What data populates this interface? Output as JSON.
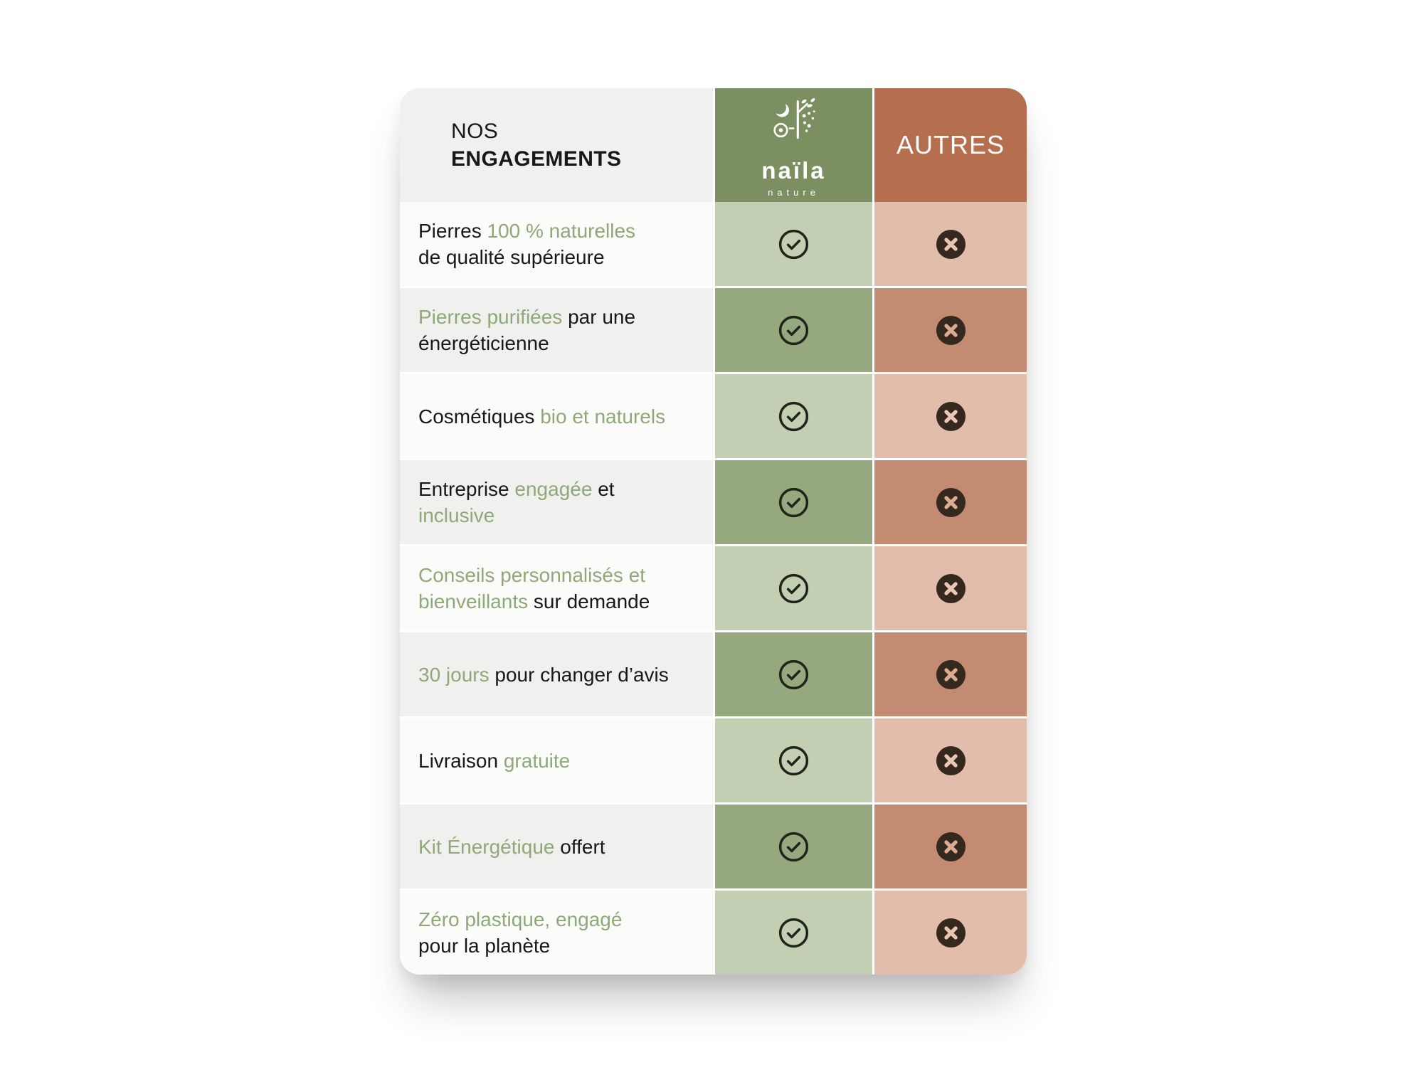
{
  "table": {
    "header": {
      "left_line1": "NOS",
      "left_line2": "ENGAGEMENTS",
      "brand_name": "naïla",
      "brand_subtitle": "nature",
      "right_title": "AUTRES"
    },
    "rows": [
      {
        "naila": "check",
        "autres": "cross",
        "segments": [
          {
            "text": "Pierres ",
            "green": false
          },
          {
            "text": "100 % naturelles",
            "green": true
          },
          {
            "text": "de qualité supérieure",
            "green": false,
            "break_before": true
          }
        ]
      },
      {
        "naila": "check",
        "autres": "cross",
        "segments": [
          {
            "text": "Pierres purifiées",
            "green": true
          },
          {
            "text": " par une",
            "green": false
          },
          {
            "text": "énergéticienne",
            "green": false,
            "break_before": true
          }
        ]
      },
      {
        "naila": "check",
        "autres": "cross",
        "segments": [
          {
            "text": "Cosmétiques ",
            "green": false
          },
          {
            "text": "bio et naturels",
            "green": true
          }
        ]
      },
      {
        "naila": "check",
        "autres": "cross",
        "segments": [
          {
            "text": "Entreprise ",
            "green": false
          },
          {
            "text": "engagée",
            "green": true
          },
          {
            "text": " et",
            "green": false
          },
          {
            "text": "inclusive",
            "green": true,
            "break_before": true
          }
        ]
      },
      {
        "naila": "check",
        "autres": "cross",
        "segments": [
          {
            "text": "Conseils personnalisés et",
            "green": true
          },
          {
            "text": "bienveillants",
            "green": true,
            "break_before": true
          },
          {
            "text": " sur demande",
            "green": false
          }
        ]
      },
      {
        "naila": "check",
        "autres": "cross",
        "segments": [
          {
            "text": "30 jours",
            "green": true
          },
          {
            "text": " pour changer d’avis",
            "green": false
          }
        ]
      },
      {
        "naila": "check",
        "autres": "cross",
        "segments": [
          {
            "text": "Livraison ",
            "green": false
          },
          {
            "text": "gratuite",
            "green": true
          }
        ]
      },
      {
        "naila": "check",
        "autres": "cross",
        "segments": [
          {
            "text": "Kit Énergétique",
            "green": true
          },
          {
            "text": " offert",
            "green": false
          }
        ]
      },
      {
        "naila": "check",
        "autres": "cross",
        "segments": [
          {
            "text": "Zéro plastique, engagé",
            "green": true
          },
          {
            "text": "pour la planète",
            "green": false,
            "break_before": true
          }
        ]
      }
    ],
    "icons": {
      "check": "check-circle-icon",
      "cross": "x-circle-icon"
    },
    "colors": {
      "header_green": "#7B8F60",
      "cell_green_light": "#C3CFB3",
      "cell_green_dark": "#95A87E",
      "header_rust": "#B56F4E",
      "cell_rust_light": "#E3BDAB",
      "cell_rust_dark": "#C38B71",
      "row_bg_light": "#FBFBFA",
      "row_bg_gray": "#F0F0EE",
      "text_green": "#8FA877",
      "text_dark": "#181817",
      "check_icon": "#20251C",
      "cross_icon_fill": "#35291F"
    }
  }
}
